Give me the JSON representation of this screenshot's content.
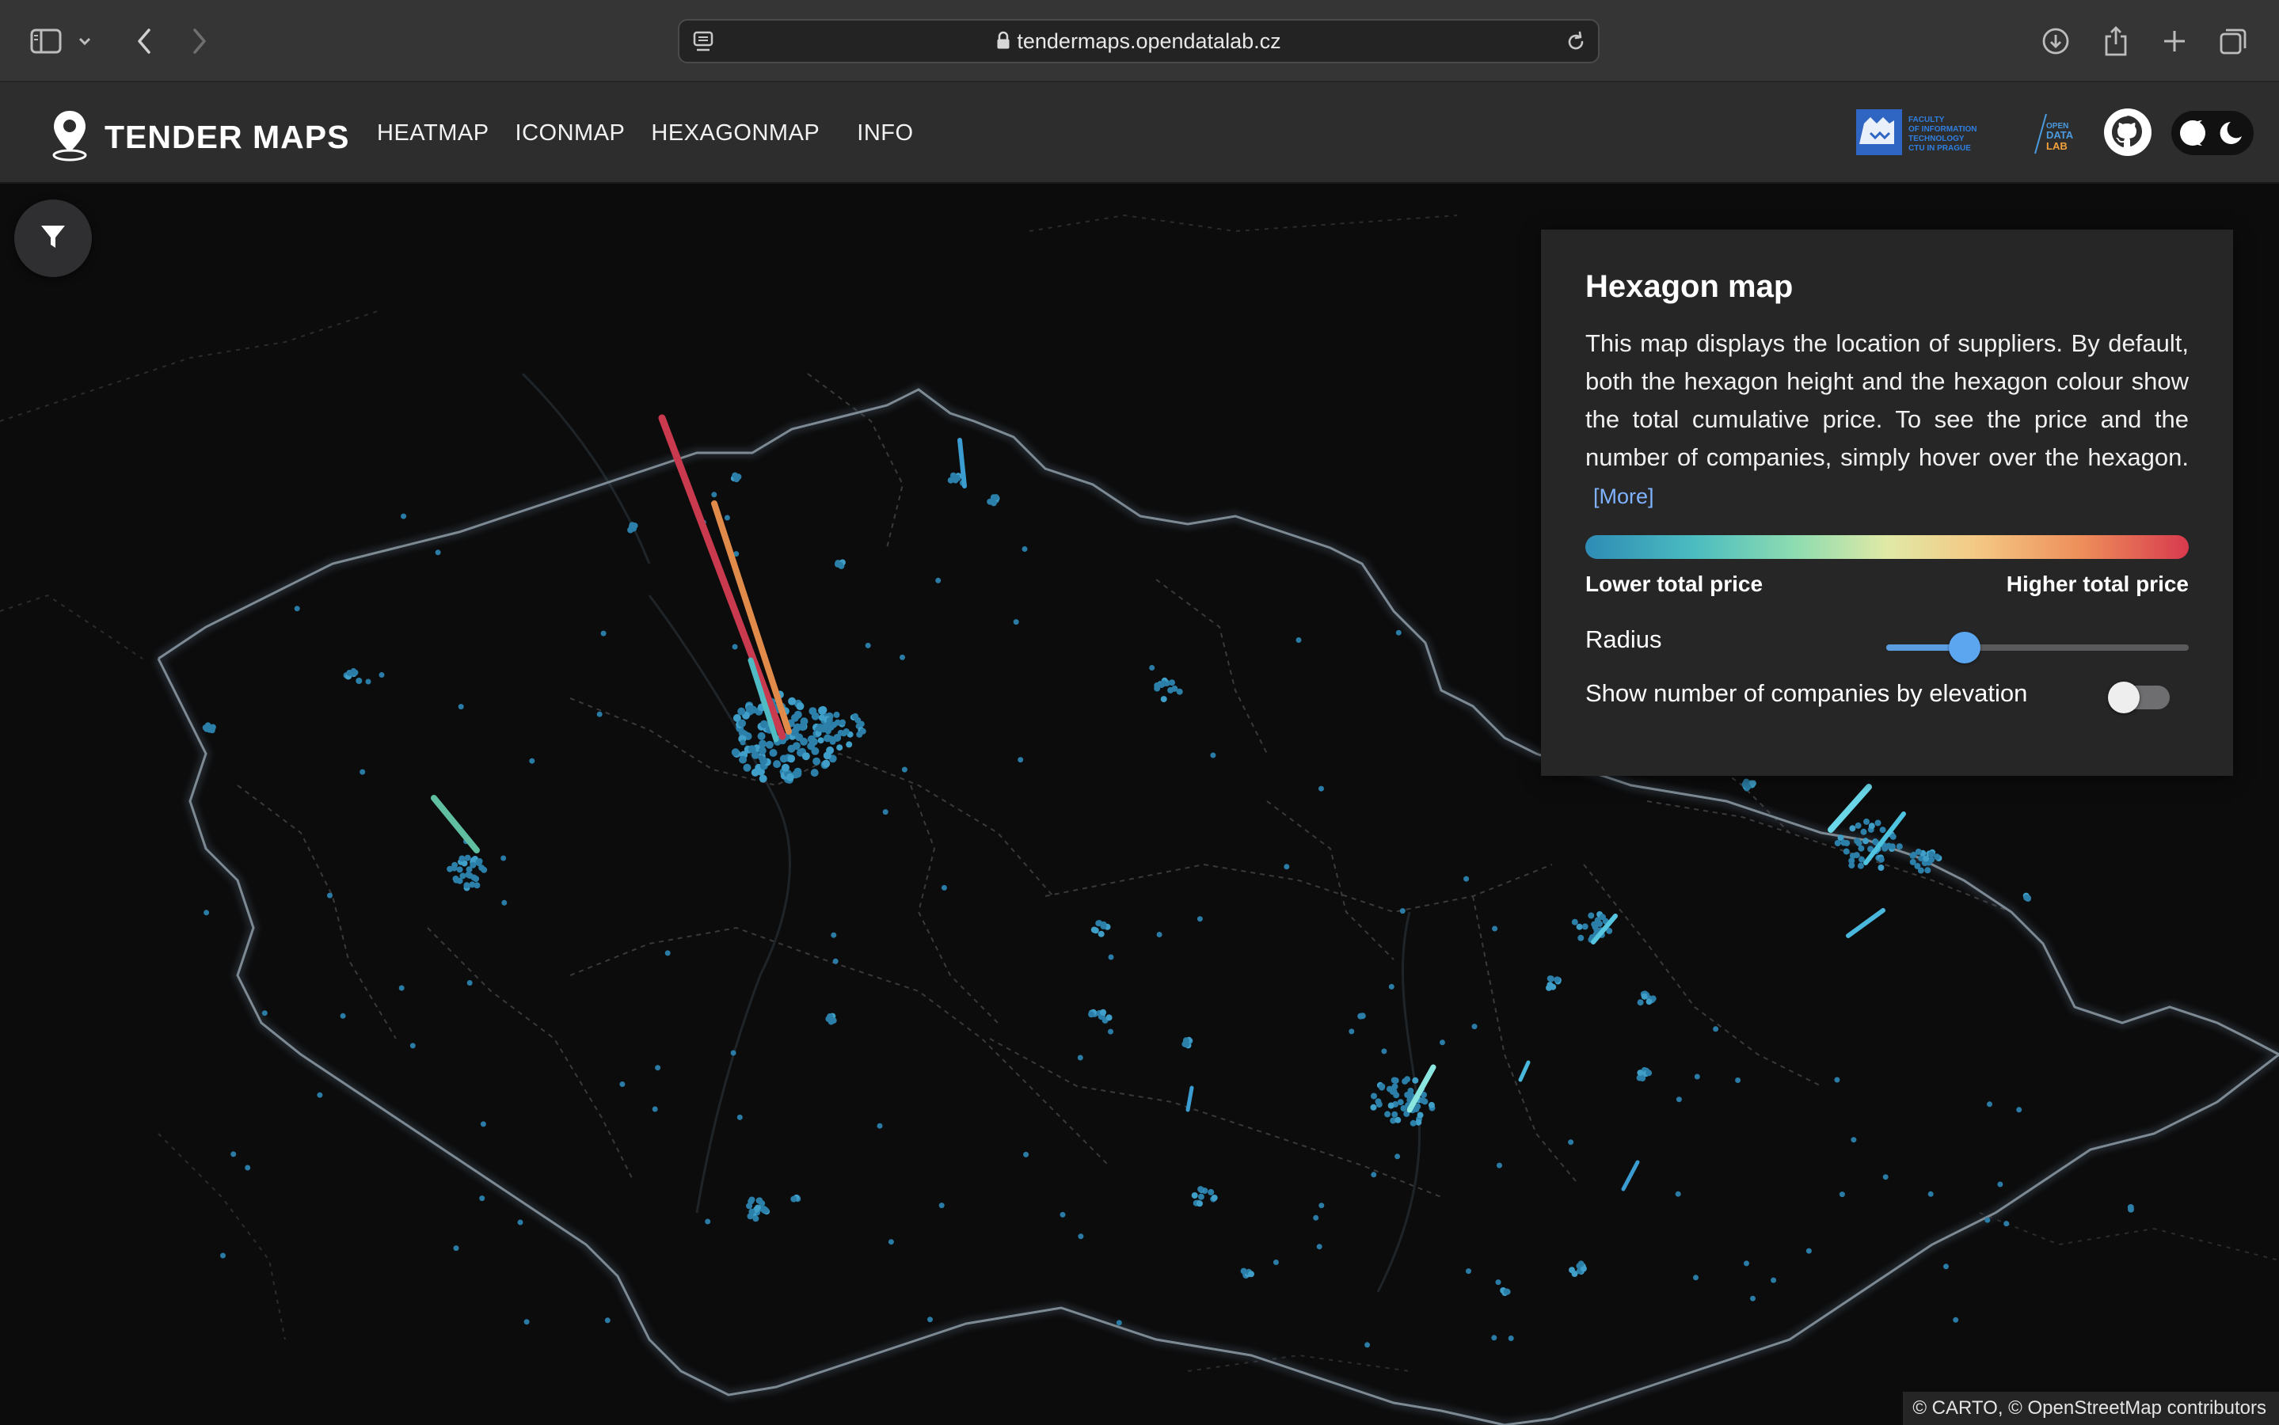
{
  "browser": {
    "url": "tendermaps.opendatalab.cz",
    "icons": [
      "sidebar-icon",
      "chevron-down-icon",
      "back-icon",
      "forward-icon",
      "reader-icon",
      "lock-icon",
      "reload-icon",
      "download-icon",
      "share-icon",
      "new-tab-icon",
      "tabs-overview-icon"
    ]
  },
  "app": {
    "title": "TENDER MAPS",
    "logo_icon": "map-pin-icon",
    "nav": {
      "heatmap": "HEATMAP",
      "iconmap": "ICONMAP",
      "hexagonmap": "HEXAGONMAP",
      "info": "INFO"
    },
    "header_logos": {
      "fit_text": [
        "FACULTY",
        "OF INFORMATION",
        "TECHNOLOGY",
        "CTU IN PRAGUE"
      ],
      "odl_text": [
        "OPEN",
        "DATA",
        "LAB"
      ],
      "github_icon": "github-icon",
      "theme_icon": "theme-toggle-icon"
    }
  },
  "map": {
    "filter_icon": "filter-icon",
    "attribution": "© CARTO, © OpenStreetMap contributors"
  },
  "panel": {
    "title": "Hexagon map",
    "description": "This map displays the location of suppliers. By default, both the hexagon height and the hexagon colour show the total cumulative price. To see the price and the number of companies, simply hover over the hexagon.",
    "more_link": "[More]",
    "legend_low": "Lower total price",
    "legend_high": "Higher total price",
    "radius_label": "Radius",
    "radius_value_fraction": 0.26,
    "toggle_label": "Show number of companies by elevation",
    "toggle_on": false,
    "colors": {
      "panel_bg": "#262627",
      "gradient_low": "#2e8cb5",
      "gradient_high": "#d83a4e",
      "slider": "#5ba6ef"
    }
  }
}
